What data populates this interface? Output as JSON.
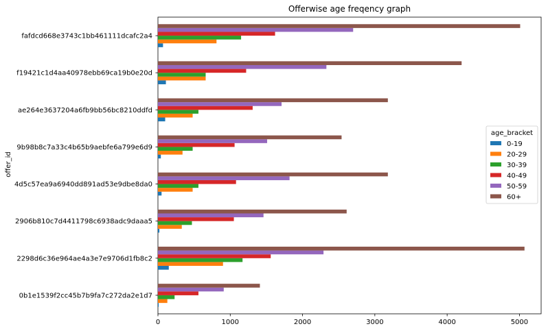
{
  "chart_data": {
    "type": "bar",
    "orientation": "horizontal",
    "title": "Offerwise age freqency graph",
    "xlabel": "",
    "ylabel": "offer_id",
    "xlim": [
      0,
      5300
    ],
    "xticks": [
      0,
      1000,
      2000,
      3000,
      4000,
      5000
    ],
    "grid": false,
    "legend_title": "age_bracket",
    "legend_position": "right",
    "categories": [
      "0b1e1539f2cc45b7b9fa7c272da2e1d7",
      "2298d6c36e964ae4a3e7e9706d1fb8c2",
      "2906b810c7d4411798c6938adc9daaa5",
      "4d5c57ea9a6940dd891ad53e9dbe8da0",
      "9b98b8c7a33c4b65b9aebfe6a799e6d9",
      "ae264e3637204a6fb9bb56bc8210ddfd",
      "f19421c1d4aa40978ebb69ca19b0e20d",
      "fafdcd668e3743c1bb461111dcafc2a4"
    ],
    "series": [
      {
        "name": "0-19",
        "color": "#1f77b4",
        "values": [
          10,
          150,
          20,
          50,
          40,
          100,
          110,
          70
        ]
      },
      {
        "name": "20-29",
        "color": "#ff7f0e",
        "values": [
          130,
          900,
          330,
          480,
          340,
          480,
          660,
          810
        ]
      },
      {
        "name": "30-39",
        "color": "#2ca02c",
        "values": [
          230,
          1170,
          470,
          560,
          480,
          560,
          660,
          1150
        ]
      },
      {
        "name": "40-49",
        "color": "#d62728",
        "values": [
          560,
          1560,
          1050,
          1080,
          1060,
          1310,
          1220,
          1620
        ]
      },
      {
        "name": "50-59",
        "color": "#9467bd",
        "values": [
          910,
          2290,
          1460,
          1820,
          1510,
          1710,
          2330,
          2700
        ]
      },
      {
        "name": "60+",
        "color": "#8c564b",
        "values": [
          1410,
          5070,
          2610,
          3180,
          2540,
          3180,
          4200,
          5010
        ]
      }
    ]
  }
}
